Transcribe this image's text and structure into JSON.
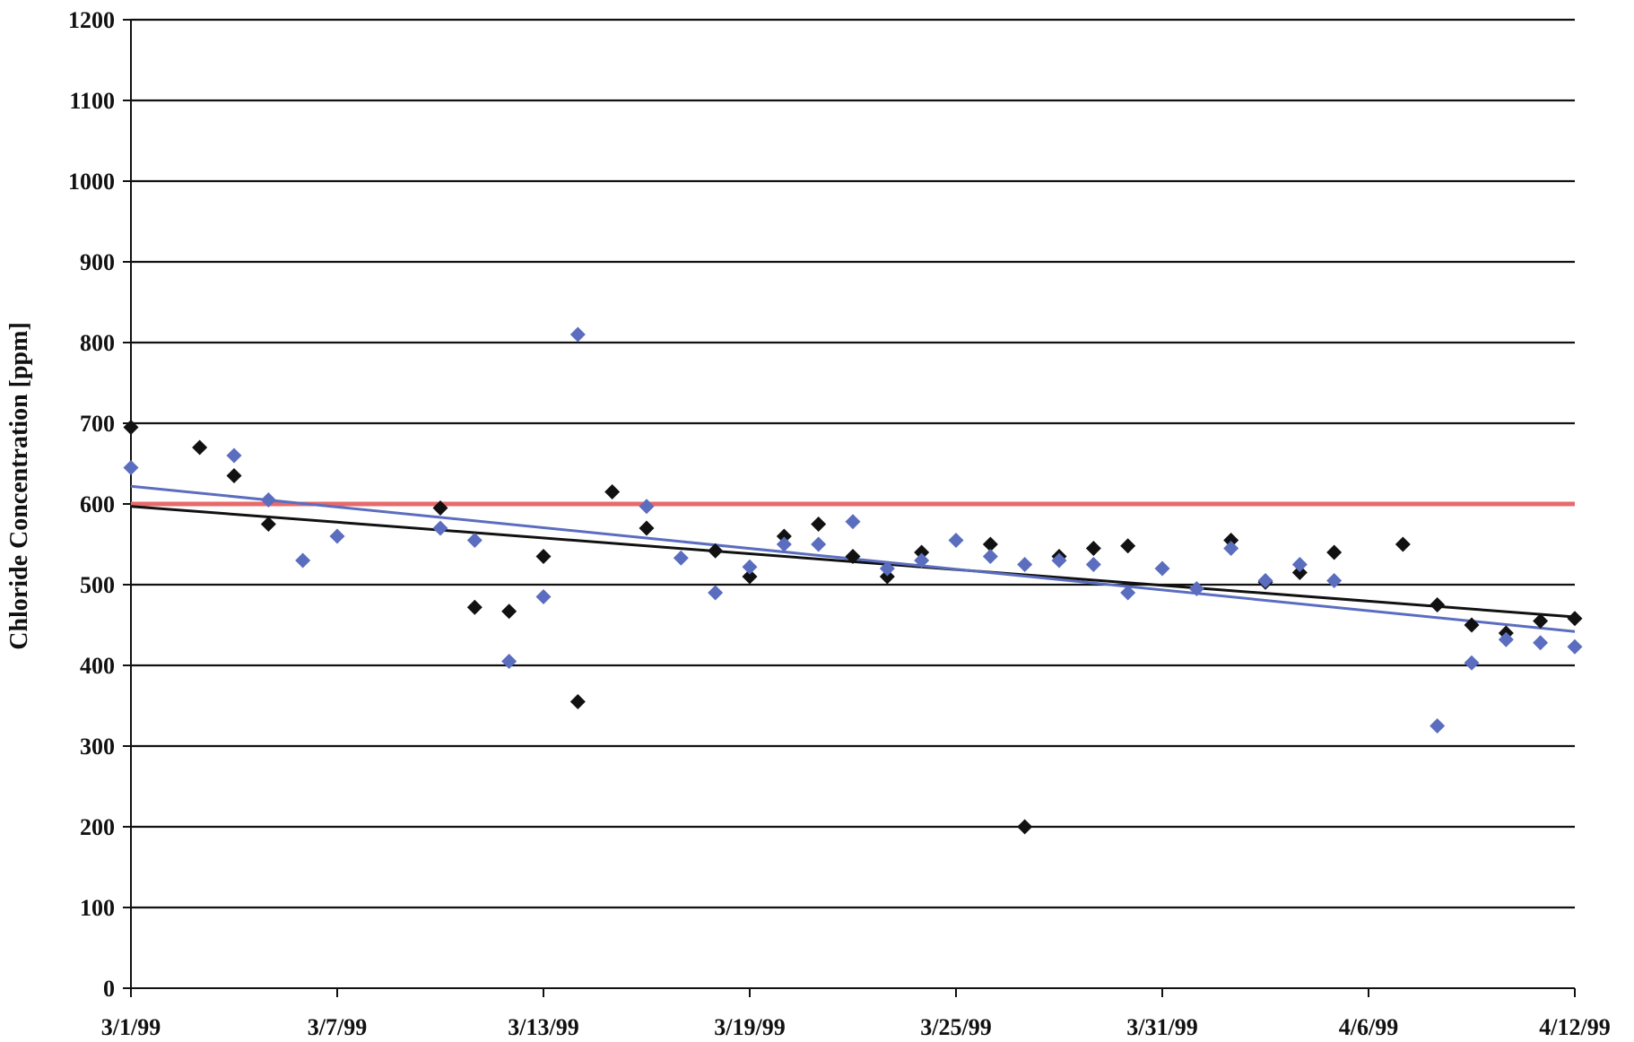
{
  "chart_data": {
    "type": "scatter",
    "title": "",
    "xlabel": "",
    "ylabel": "Chloride Concentration [ppm]",
    "x_axis": {
      "type": "date",
      "min": "1999-03-01",
      "max": "1999-04-12",
      "tick_labels": [
        "3/1/99",
        "3/7/99",
        "3/13/99",
        "3/19/99",
        "3/25/99",
        "3/31/99",
        "4/6/99",
        "4/12/99"
      ],
      "tick_dates": [
        "1999-03-01",
        "1999-03-07",
        "1999-03-13",
        "1999-03-19",
        "1999-03-25",
        "1999-03-31",
        "1999-04-06",
        "1999-04-12"
      ]
    },
    "y_axis": {
      "min": 0,
      "max": 1200,
      "ticks": [
        0,
        100,
        200,
        300,
        400,
        500,
        600,
        700,
        800,
        900,
        1000,
        1100,
        1200
      ]
    },
    "grid": "horizontal",
    "legend": "none",
    "series": [
      {
        "marker": "diamond",
        "color": "#111111",
        "points": [
          {
            "x": "1999-03-01",
            "y": 695
          },
          {
            "x": "1999-03-03",
            "y": 670
          },
          {
            "x": "1999-03-04",
            "y": 635
          },
          {
            "x": "1999-03-05",
            "y": 575
          },
          {
            "x": "1999-03-10",
            "y": 595
          },
          {
            "x": "1999-03-11",
            "y": 472
          },
          {
            "x": "1999-03-12",
            "y": 467
          },
          {
            "x": "1999-03-13",
            "y": 535
          },
          {
            "x": "1999-03-14",
            "y": 355
          },
          {
            "x": "1999-03-15",
            "y": 615
          },
          {
            "x": "1999-03-16",
            "y": 570
          },
          {
            "x": "1999-03-18",
            "y": 542
          },
          {
            "x": "1999-03-19",
            "y": 510
          },
          {
            "x": "1999-03-20",
            "y": 560
          },
          {
            "x": "1999-03-21",
            "y": 575
          },
          {
            "x": "1999-03-22",
            "y": 535
          },
          {
            "x": "1999-03-23",
            "y": 510
          },
          {
            "x": "1999-03-24",
            "y": 540
          },
          {
            "x": "1999-03-26",
            "y": 550
          },
          {
            "x": "1999-03-27",
            "y": 200
          },
          {
            "x": "1999-03-28",
            "y": 535
          },
          {
            "x": "1999-03-29",
            "y": 545
          },
          {
            "x": "1999-03-30",
            "y": 548
          },
          {
            "x": "1999-04-02",
            "y": 555
          },
          {
            "x": "1999-04-03",
            "y": 503
          },
          {
            "x": "1999-04-04",
            "y": 515
          },
          {
            "x": "1999-04-05",
            "y": 540
          },
          {
            "x": "1999-04-07",
            "y": 550
          },
          {
            "x": "1999-04-08",
            "y": 475
          },
          {
            "x": "1999-04-09",
            "y": 450
          },
          {
            "x": "1999-04-10",
            "y": 440
          },
          {
            "x": "1999-04-11",
            "y": 455
          },
          {
            "x": "1999-04-12",
            "y": 458
          }
        ],
        "trendline": {
          "start": {
            "x": "1999-03-01",
            "y": 597
          },
          "end": {
            "x": "1999-04-12",
            "y": 460
          }
        }
      },
      {
        "marker": "diamond",
        "color": "#5b6dbf",
        "points": [
          {
            "x": "1999-03-01",
            "y": 645
          },
          {
            "x": "1999-03-04",
            "y": 660
          },
          {
            "x": "1999-03-05",
            "y": 605
          },
          {
            "x": "1999-03-06",
            "y": 530
          },
          {
            "x": "1999-03-07",
            "y": 560
          },
          {
            "x": "1999-03-10",
            "y": 570
          },
          {
            "x": "1999-03-11",
            "y": 555
          },
          {
            "x": "1999-03-12",
            "y": 405
          },
          {
            "x": "1999-03-13",
            "y": 485
          },
          {
            "x": "1999-03-14",
            "y": 810
          },
          {
            "x": "1999-03-16",
            "y": 597
          },
          {
            "x": "1999-03-17",
            "y": 533
          },
          {
            "x": "1999-03-18",
            "y": 490
          },
          {
            "x": "1999-03-19",
            "y": 522
          },
          {
            "x": "1999-03-20",
            "y": 550
          },
          {
            "x": "1999-03-21",
            "y": 550
          },
          {
            "x": "1999-03-22",
            "y": 578
          },
          {
            "x": "1999-03-23",
            "y": 520
          },
          {
            "x": "1999-03-24",
            "y": 530
          },
          {
            "x": "1999-03-25",
            "y": 555
          },
          {
            "x": "1999-03-26",
            "y": 535
          },
          {
            "x": "1999-03-27",
            "y": 525
          },
          {
            "x": "1999-03-28",
            "y": 530
          },
          {
            "x": "1999-03-29",
            "y": 525
          },
          {
            "x": "1999-03-30",
            "y": 490
          },
          {
            "x": "1999-03-31",
            "y": 520
          },
          {
            "x": "1999-04-01",
            "y": 495
          },
          {
            "x": "1999-04-02",
            "y": 545
          },
          {
            "x": "1999-04-03",
            "y": 505
          },
          {
            "x": "1999-04-04",
            "y": 525
          },
          {
            "x": "1999-04-05",
            "y": 505
          },
          {
            "x": "1999-04-08",
            "y": 325
          },
          {
            "x": "1999-04-09",
            "y": 403
          },
          {
            "x": "1999-04-10",
            "y": 432
          },
          {
            "x": "1999-04-11",
            "y": 428
          },
          {
            "x": "1999-04-12",
            "y": 423
          }
        ],
        "trendline": {
          "start": {
            "x": "1999-03-01",
            "y": 622
          },
          "end": {
            "x": "1999-04-12",
            "y": 442
          }
        }
      }
    ],
    "reference_lines": [
      {
        "orientation": "horizontal",
        "y": 600,
        "color": "#e8696a"
      }
    ]
  }
}
